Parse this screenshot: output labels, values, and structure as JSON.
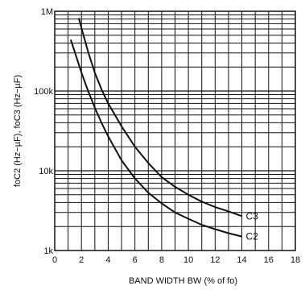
{
  "chart_data": {
    "type": "line",
    "title": "",
    "xlabel": "BAND WIDTH BW (% of fo)",
    "ylabel": "foC2 (Hz−µF), foC3 (Hz−µF)",
    "xlim": [
      0,
      18
    ],
    "ylim": [
      1000,
      1000000
    ],
    "y_scale": "log",
    "grid": true,
    "x_ticks": [
      "0",
      "2",
      "4",
      "6",
      "8",
      "10",
      "12",
      "14",
      "16",
      "18"
    ],
    "y_ticks": [
      "1k",
      "10k",
      "100k",
      "1M"
    ],
    "series": [
      {
        "name": "C3",
        "points": [
          [
            1.8,
            820000
          ],
          [
            2.0,
            620000
          ],
          [
            2.5,
            310000
          ],
          [
            3.0,
            170000
          ],
          [
            3.5,
            105000
          ],
          [
            4.0,
            70000
          ],
          [
            5.0,
            36000
          ],
          [
            6.0,
            20000
          ],
          [
            7.0,
            12500
          ],
          [
            8.0,
            8300
          ],
          [
            9.0,
            6300
          ],
          [
            10.0,
            5000
          ],
          [
            11.0,
            4100
          ],
          [
            12.0,
            3500
          ],
          [
            13.0,
            3100
          ],
          [
            14.0,
            2700
          ]
        ]
      },
      {
        "name": "C2",
        "points": [
          [
            1.2,
            440000
          ],
          [
            1.5,
            310000
          ],
          [
            2.0,
            170000
          ],
          [
            2.5,
            100000
          ],
          [
            3.0,
            62000
          ],
          [
            3.5,
            40000
          ],
          [
            4.0,
            27000
          ],
          [
            5.0,
            13500
          ],
          [
            6.0,
            8000
          ],
          [
            7.0,
            5300
          ],
          [
            8.0,
            3900
          ],
          [
            9.0,
            3000
          ],
          [
            10.0,
            2500
          ],
          [
            11.0,
            2100
          ],
          [
            12.0,
            1850
          ],
          [
            13.0,
            1650
          ],
          [
            14.0,
            1500
          ]
        ]
      }
    ]
  }
}
